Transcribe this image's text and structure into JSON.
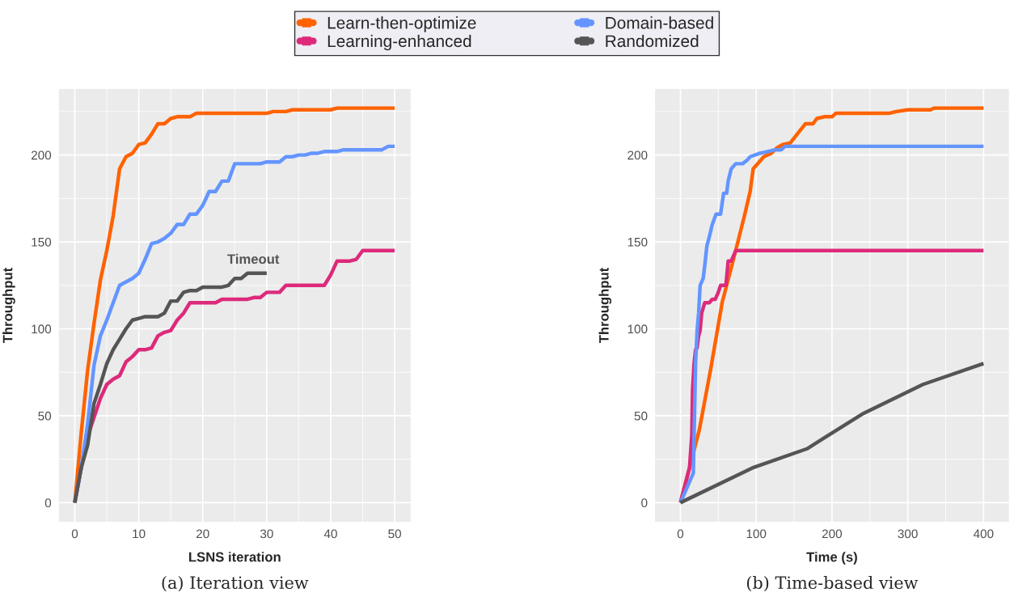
{
  "chart_data": [
    {
      "type": "line",
      "xlabel": "LSNS iteration",
      "ylabel": "Throughput",
      "xlim": [
        -2.5,
        52.5
      ],
      "ylim": [
        -11,
        238
      ],
      "xticks": [
        0,
        10,
        20,
        30,
        40,
        50
      ],
      "yticks": [
        0,
        50,
        100,
        150,
        200
      ],
      "grid": true,
      "legend": "top",
      "annotations": [
        {
          "text": "Timeout",
          "x": 30,
          "y": 132
        },
        "(a) Iteration view"
      ],
      "series": [
        {
          "name": "Learn-then-optimize",
          "color": "#ff6200",
          "x": [
            0,
            1,
            2,
            3,
            4,
            5,
            6,
            7,
            8,
            9,
            10,
            11,
            12,
            13,
            14,
            15,
            16,
            18,
            19,
            30,
            31,
            33,
            34,
            40,
            41,
            50
          ],
          "values": [
            0,
            40,
            76,
            103,
            128,
            145,
            165,
            192,
            199,
            201,
            206,
            207,
            212,
            218,
            218,
            221,
            222,
            222,
            224,
            224,
            225,
            225,
            226,
            226,
            227,
            227
          ]
        },
        {
          "name": "Learning-enhanced",
          "color": "#dd2a7b",
          "x": [
            0,
            1,
            2,
            3,
            4,
            5,
            6,
            7,
            8,
            9,
            10,
            11,
            12,
            13,
            14,
            15,
            16,
            17,
            18,
            22,
            23,
            27,
            28,
            29,
            30,
            32,
            33,
            39,
            40,
            41,
            43,
            44,
            45,
            50
          ],
          "values": [
            0,
            20,
            38,
            49,
            60,
            68,
            71,
            73,
            81,
            84,
            88,
            88,
            89,
            96,
            98,
            99,
            105,
            109,
            115,
            115,
            117,
            117,
            118,
            118,
            121,
            121,
            125,
            125,
            131,
            139,
            139,
            140,
            145,
            145
          ]
        },
        {
          "name": "Domain-based",
          "color": "#6495ff",
          "x": [
            0,
            1,
            2,
            3,
            4,
            5,
            6,
            7,
            8,
            9,
            10,
            11,
            12,
            13,
            14,
            15,
            16,
            17,
            18,
            19,
            20,
            21,
            22,
            23,
            24,
            25,
            29,
            30,
            32,
            33,
            34,
            35,
            36,
            37,
            38,
            39,
            41,
            42,
            48,
            49,
            50
          ],
          "values": [
            0,
            20,
            45,
            79,
            96,
            105,
            115,
            125,
            127,
            129,
            132,
            140,
            149,
            150,
            152,
            155,
            160,
            160,
            166,
            166,
            171,
            179,
            179,
            185,
            185,
            195,
            195,
            196,
            196,
            199,
            199,
            200,
            200,
            201,
            201,
            202,
            202,
            203,
            203,
            205,
            205
          ]
        },
        {
          "name": "Randomized",
          "color": "#555555",
          "x": [
            0,
            1,
            2,
            3,
            4,
            5,
            6,
            7,
            8,
            9,
            10,
            11,
            13,
            14,
            15,
            16,
            17,
            18,
            19,
            20,
            21,
            23,
            24,
            25,
            26,
            27,
            30
          ],
          "values": [
            0,
            20,
            33,
            57,
            68,
            80,
            88,
            94,
            100,
            105,
            106,
            107,
            107,
            109,
            116,
            116,
            121,
            122,
            122,
            124,
            124,
            124,
            125,
            129,
            129,
            132,
            132
          ]
        }
      ]
    },
    {
      "type": "line",
      "xlabel": "Time (s)",
      "ylabel": "Throughput",
      "xlim": [
        -33.5,
        433.5
      ],
      "ylim": [
        -11,
        238
      ],
      "xticks": [
        0,
        100,
        200,
        300,
        400
      ],
      "yticks": [
        0,
        50,
        100,
        150,
        200
      ],
      "grid": true,
      "annotations": [
        "(b) Time-based view"
      ],
      "series": [
        {
          "color": "#ff6200",
          "x": [
            0,
            25,
            40,
            55,
            70,
            85,
            92,
            96,
            110,
            120,
            127,
            135,
            145,
            165,
            175,
            180,
            190,
            200,
            205,
            275,
            285,
            300,
            330,
            335,
            400
          ],
          "values": [
            0,
            42,
            77,
            115,
            140,
            166,
            179,
            192,
            199,
            201,
            204,
            206,
            207,
            218,
            218,
            221,
            222,
            222,
            224,
            224,
            225,
            226,
            226,
            227,
            227
          ]
        },
        {
          "color": "#dd2a7b",
          "x": [
            0,
            12,
            15,
            16,
            18,
            20,
            22,
            24,
            26,
            28,
            32,
            38,
            42,
            46,
            50,
            53,
            60,
            63,
            67,
            73,
            400
          ],
          "values": [
            0,
            20,
            39,
            65,
            80,
            88,
            89,
            96,
            99,
            109,
            115,
            115,
            117,
            117,
            121,
            125,
            125,
            139,
            139,
            145,
            145
          ]
        },
        {
          "color": "#6495ff",
          "x": [
            0,
            17,
            20,
            22,
            24,
            26,
            30,
            32,
            35,
            37,
            42,
            47,
            53,
            57,
            61,
            63,
            67,
            73,
            82,
            88,
            92,
            105,
            115,
            125,
            133,
            138,
            400
          ],
          "values": [
            0,
            17,
            80,
            99,
            109,
            125,
            129,
            136,
            148,
            151,
            160,
            166,
            166,
            178,
            178,
            185,
            192,
            195,
            195,
            197,
            199,
            201,
            202,
            203,
            203,
            205,
            205
          ]
        },
        {
          "color": "#555555",
          "x": [
            0,
            95,
            167,
            240,
            320,
            400
          ],
          "values": [
            0,
            20,
            31,
            51,
            68,
            80
          ]
        }
      ]
    }
  ]
}
